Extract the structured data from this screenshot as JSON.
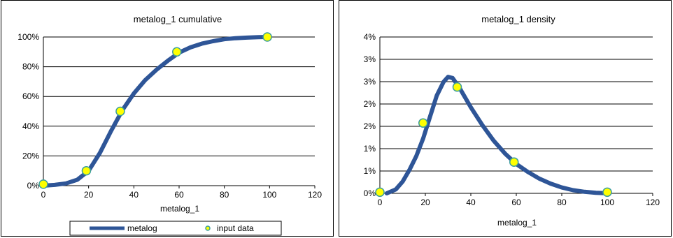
{
  "chart_data": [
    {
      "type": "line",
      "title": "metalog_1  cumulative",
      "xlabel": "metalog_1",
      "ylabel": "",
      "xlim": [
        0,
        120
      ],
      "ylim": [
        0,
        1
      ],
      "x_ticks": [
        "0",
        "20",
        "40",
        "60",
        "80",
        "100",
        "120"
      ],
      "y_ticks": [
        "0%",
        "20%",
        "40%",
        "60%",
        "80%",
        "100%"
      ],
      "grid": true,
      "legend": "bottom",
      "series": [
        {
          "name": "metalog",
          "color": "#2e5597",
          "points": [
            [
              0,
              0
            ],
            [
              5,
              0.005
            ],
            [
              10,
              0.015
            ],
            [
              15,
              0.04
            ],
            [
              20,
              0.1
            ],
            [
              25,
              0.22
            ],
            [
              30,
              0.37
            ],
            [
              35,
              0.51
            ],
            [
              40,
              0.62
            ],
            [
              45,
              0.71
            ],
            [
              50,
              0.78
            ],
            [
              55,
              0.84
            ],
            [
              60,
              0.895
            ],
            [
              65,
              0.93
            ],
            [
              70,
              0.955
            ],
            [
              75,
              0.972
            ],
            [
              80,
              0.985
            ],
            [
              85,
              0.992
            ],
            [
              90,
              0.996
            ],
            [
              95,
              0.999
            ],
            [
              100,
              1.0
            ]
          ]
        },
        {
          "name": "input data",
          "color": "#ffff00",
          "points": [
            [
              0,
              0.01
            ],
            [
              19,
              0.1
            ],
            [
              34,
              0.5
            ],
            [
              59,
              0.9
            ],
            [
              99,
              1.0
            ]
          ]
        }
      ]
    },
    {
      "type": "line",
      "title": "metalog_1  density",
      "xlabel": "metalog_1",
      "ylabel": "",
      "xlim": [
        0,
        120
      ],
      "ylim": [
        0,
        4
      ],
      "x_ticks": [
        "0",
        "20",
        "40",
        "60",
        "80",
        "100",
        "120"
      ],
      "y_ticks": [
        "0%",
        "1%",
        "1%",
        "2%",
        "2%",
        "3%",
        "3%",
        "4%"
      ],
      "grid": true,
      "legend": "none",
      "series": [
        {
          "name": "",
          "color": "#2e5597",
          "points": [
            [
              3,
              0
            ],
            [
              7,
              0.1
            ],
            [
              10,
              0.3
            ],
            [
              13,
              0.6
            ],
            [
              16,
              0.95
            ],
            [
              19,
              1.4
            ],
            [
              22,
              1.95
            ],
            [
              25,
              2.5
            ],
            [
              28,
              2.85
            ],
            [
              30,
              2.98
            ],
            [
              32,
              2.95
            ],
            [
              35,
              2.7
            ],
            [
              40,
              2.2
            ],
            [
              45,
              1.75
            ],
            [
              50,
              1.35
            ],
            [
              55,
              1.02
            ],
            [
              60,
              0.75
            ],
            [
              65,
              0.55
            ],
            [
              70,
              0.38
            ],
            [
              75,
              0.25
            ],
            [
              80,
              0.15
            ],
            [
              85,
              0.08
            ],
            [
              90,
              0.04
            ],
            [
              95,
              0.015
            ],
            [
              99,
              0.005
            ]
          ]
        },
        {
          "name": "",
          "color": "#ffff00",
          "points": [
            [
              0,
              0.03
            ],
            [
              19,
              1.8
            ],
            [
              34,
              2.72
            ],
            [
              59,
              0.8
            ],
            [
              100,
              0.03
            ]
          ]
        }
      ]
    }
  ]
}
